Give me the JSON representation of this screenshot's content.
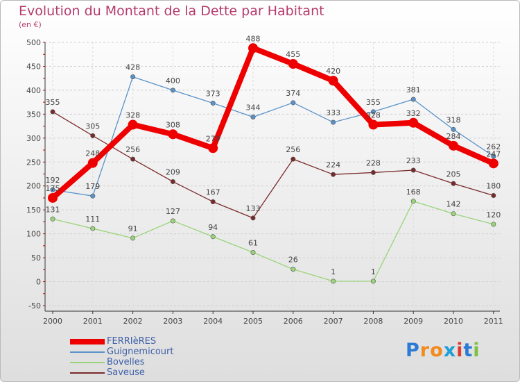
{
  "title": "Evolution du Montant de la Dette par Habitant",
  "subtitle": "(en €)",
  "logo": {
    "text": "Proxiti",
    "letters": [
      "P",
      "r",
      "o",
      "x",
      "i",
      "t",
      "i"
    ],
    "colors": [
      "#2b7bd6",
      "#f28a1d",
      "#f28a1d",
      "#1f9fd8",
      "#e03a2d",
      "#2b7bd6",
      "#7cc242"
    ]
  },
  "chart_data": {
    "type": "line",
    "title": "Evolution du Montant de la Dette par Habitant",
    "ylabel": "(en €)",
    "xlabel": "",
    "categories": [
      "2000",
      "2001",
      "2002",
      "2003",
      "2004",
      "2005",
      "2006",
      "2007",
      "2008",
      "2009",
      "2010",
      "2011"
    ],
    "ylim": [
      -50,
      500
    ],
    "yticks": [
      "-50",
      "0",
      "50",
      "100",
      "150",
      "200",
      "250",
      "300",
      "350",
      "400",
      "450",
      "500"
    ],
    "grid": "horizontal",
    "legend_position": "bottom-left",
    "series": [
      {
        "name": "FERRIèRES",
        "color": "#ee0000",
        "values": [
          175,
          248,
          328,
          308,
          279,
          488,
          455,
          420,
          328,
          332,
          284,
          247
        ]
      },
      {
        "name": "Guignemicourt",
        "color": "#5a92c8",
        "values": [
          192,
          179,
          428,
          400,
          373,
          344,
          374,
          333,
          355,
          381,
          318,
          262
        ]
      },
      {
        "name": "Bovelles",
        "color": "#9ad47a",
        "values": [
          131,
          111,
          91,
          127,
          94,
          61,
          26,
          1,
          1,
          168,
          142,
          120
        ]
      },
      {
        "name": "Saveuse",
        "color": "#7a2a2a",
        "values": [
          355,
          305,
          256,
          209,
          167,
          133,
          256,
          224,
          228,
          233,
          205,
          180
        ]
      }
    ]
  }
}
